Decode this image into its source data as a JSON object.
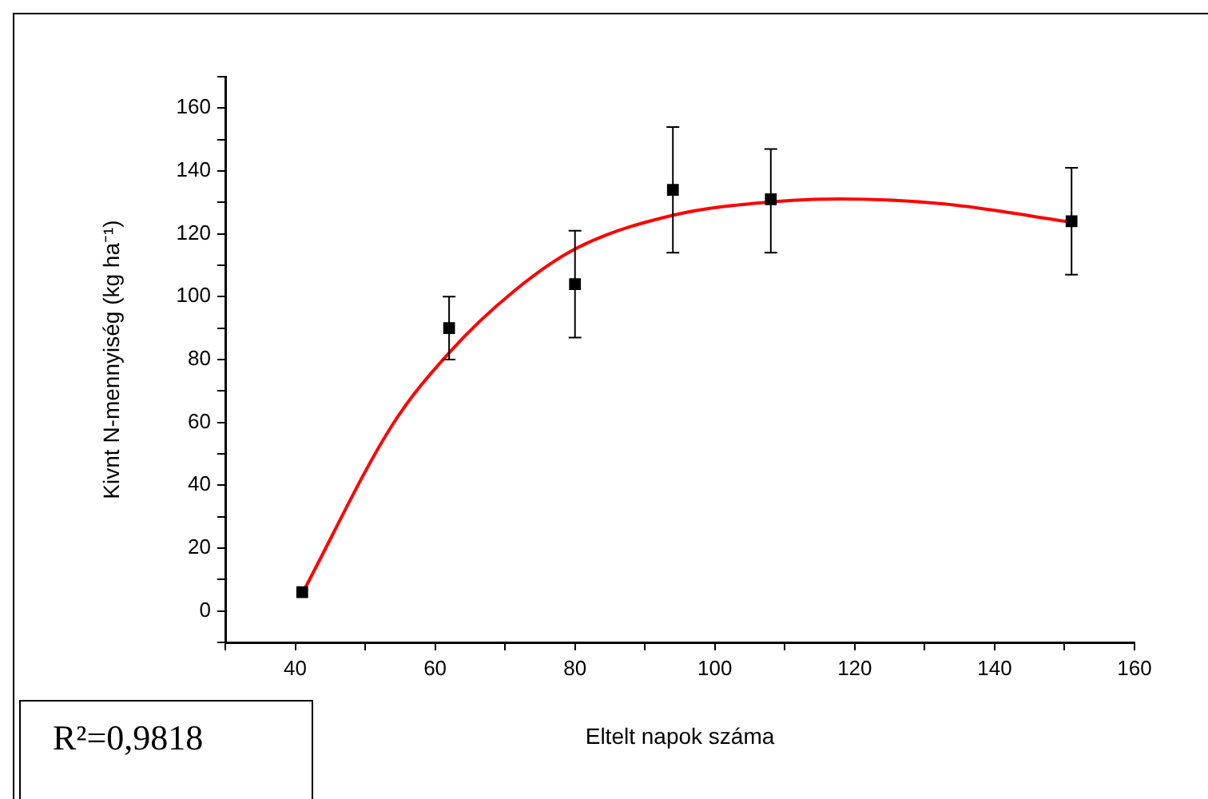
{
  "chart_data": {
    "type": "scatter",
    "xlabel": "Eltelt napok száma",
    "ylabel": "Kivnt N-mennyiség (kg ha⁻¹)",
    "xlim": [
      30,
      160
    ],
    "xticks": [
      {
        "value": 30,
        "label": null
      },
      40,
      {
        "value": 50,
        "label": null
      },
      60,
      {
        "value": 70,
        "label": null
      },
      80,
      {
        "value": 90,
        "label": null
      },
      100,
      {
        "value": 110,
        "label": null
      },
      120,
      {
        "value": 130,
        "label": null
      },
      140,
      {
        "value": 150,
        "label": null
      },
      160
    ],
    "ylim": [
      -10,
      170
    ],
    "yticks": [
      {
        "value": -10,
        "label": null
      },
      0,
      {
        "value": 10,
        "label": null
      },
      20,
      {
        "value": 30,
        "label": null
      },
      40,
      {
        "value": 50,
        "label": null
      },
      60,
      {
        "value": 70,
        "label": null
      },
      80,
      {
        "value": 90,
        "label": null
      },
      100,
      {
        "value": 110,
        "label": null
      },
      120,
      {
        "value": 130,
        "label": null
      },
      140,
      {
        "value": 150,
        "label": null
      },
      160,
      {
        "value": 170,
        "label": null
      }
    ],
    "grid": false,
    "legend": false,
    "annotations": [
      "R²=0,9818"
    ],
    "series": [
      {
        "type": "line",
        "color": "#ff0000",
        "marker": "none",
        "x": [
          41.1,
          53.8,
          62.1,
          71.4,
          80.2,
          94.2,
          108.3,
          117.9,
          132.8,
          151.3
        ],
        "values": [
          6,
          58.9,
          82.4,
          102,
          115.4,
          126,
          130.2,
          131.1,
          129.5,
          123.6
        ]
      },
      {
        "type": "scatter",
        "color": "#000000",
        "marker": "square",
        "x": [
          41,
          62,
          80,
          94,
          108,
          151
        ],
        "values": [
          6,
          90,
          104,
          134,
          131,
          124
        ],
        "errors": [
          null,
          [
            80,
            100
          ],
          [
            87,
            121
          ],
          [
            114,
            154
          ],
          [
            114,
            147
          ],
          [
            107,
            141
          ]
        ]
      }
    ]
  }
}
